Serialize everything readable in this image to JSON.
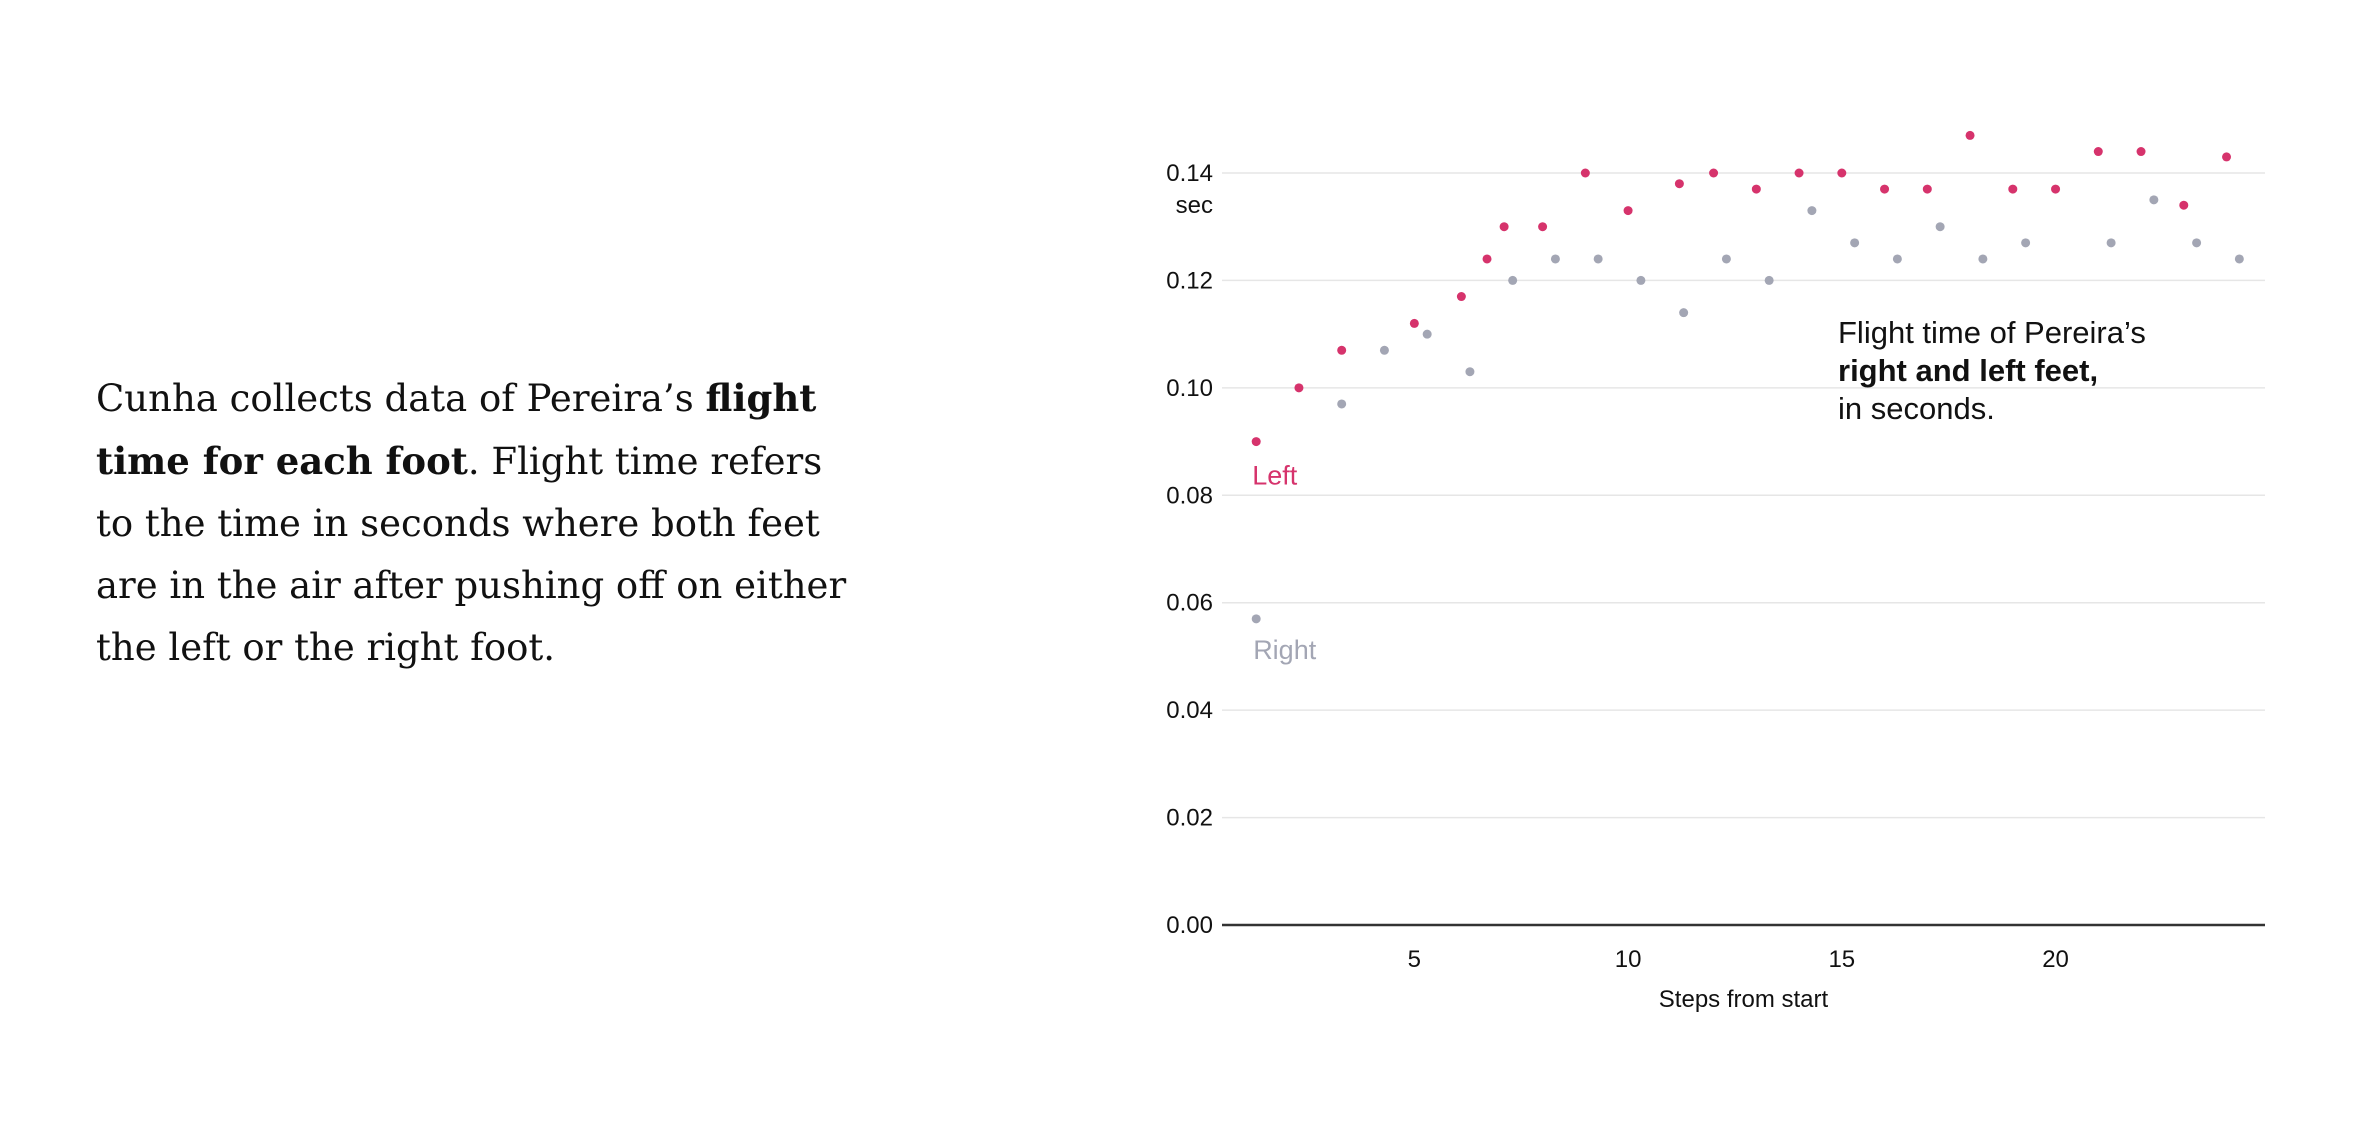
{
  "text": {
    "part1": "Cunha collects data of Pereira’s ",
    "bold": "flight time for each foot",
    "part2": ". Flight time refers to the time in seconds where both feet are in the air after pushing off on either the left or the right foot."
  },
  "colors": {
    "left": "#d6336c",
    "right": "#a3a6b4",
    "grid": "#e6e6e6",
    "axis": "#333333"
  },
  "chart_data": {
    "type": "scatter",
    "xlabel": "Steps from start",
    "ylabel_unit": "sec",
    "xticks": [
      5,
      10,
      15,
      20
    ],
    "yticks": [
      "0.00",
      "0.02",
      "0.04",
      "0.06",
      "0.08",
      "0.10",
      "0.12",
      "0.14"
    ],
    "xlim": [
      0.5,
      24.9
    ],
    "ylim": [
      0,
      0.14
    ],
    "annotation": {
      "line1": "Flight time of Pereira’s",
      "line2": "right and left feet,",
      "line3": "in seconds."
    },
    "series": [
      {
        "name": "Left",
        "points": [
          [
            1.3,
            0.09
          ],
          [
            2.3,
            0.1
          ],
          [
            3.3,
            0.107
          ],
          [
            5.0,
            0.112
          ],
          [
            6.1,
            0.117
          ],
          [
            6.7,
            0.124
          ],
          [
            7.1,
            0.13
          ],
          [
            8.0,
            0.13
          ],
          [
            9.0,
            0.14
          ],
          [
            10.0,
            0.133
          ],
          [
            11.2,
            0.138
          ],
          [
            12.0,
            0.14
          ],
          [
            13.0,
            0.137
          ],
          [
            14.0,
            0.14
          ],
          [
            15.0,
            0.14
          ],
          [
            16.0,
            0.137
          ],
          [
            17.0,
            0.137
          ],
          [
            18.0,
            0.147
          ],
          [
            19.0,
            0.137
          ],
          [
            20.0,
            0.137
          ],
          [
            21.0,
            0.144
          ],
          [
            22.0,
            0.144
          ],
          [
            23.0,
            0.134
          ],
          [
            24.0,
            0.143
          ]
        ]
      },
      {
        "name": "Right",
        "points": [
          [
            1.3,
            0.057
          ],
          [
            3.3,
            0.097
          ],
          [
            4.3,
            0.107
          ],
          [
            5.3,
            0.11
          ],
          [
            6.3,
            0.103
          ],
          [
            7.3,
            0.12
          ],
          [
            8.3,
            0.124
          ],
          [
            9.3,
            0.124
          ],
          [
            10.3,
            0.12
          ],
          [
            11.3,
            0.114
          ],
          [
            12.3,
            0.124
          ],
          [
            13.3,
            0.12
          ],
          [
            14.3,
            0.133
          ],
          [
            15.3,
            0.127
          ],
          [
            16.3,
            0.124
          ],
          [
            17.3,
            0.13
          ],
          [
            18.3,
            0.124
          ],
          [
            19.3,
            0.127
          ],
          [
            21.3,
            0.127
          ],
          [
            22.3,
            0.135
          ],
          [
            23.3,
            0.127
          ],
          [
            24.3,
            0.124
          ]
        ]
      }
    ]
  }
}
